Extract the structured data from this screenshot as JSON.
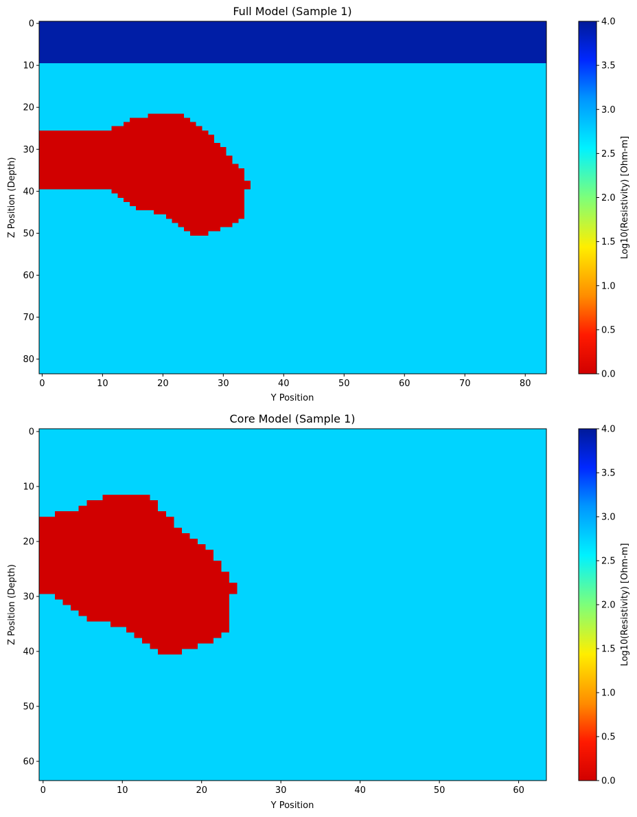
{
  "chart_data": [
    {
      "type": "heatmap",
      "title": "Full Model (Sample 1)",
      "xlabel": "Y Position",
      "ylabel": "Z Position (Depth)",
      "xlim": [
        -0.5,
        83.5
      ],
      "ylim": [
        83.5,
        -0.5
      ],
      "x_ticks": [
        0,
        10,
        20,
        30,
        40,
        50,
        60,
        70,
        80
      ],
      "y_ticks": [
        0,
        10,
        20,
        30,
        40,
        50,
        60,
        70,
        80
      ],
      "grid": [
        84,
        84
      ],
      "layers": [
        {
          "z_from": 0,
          "z_to": 9,
          "value": 4.0,
          "color": "#001ea6"
        },
        {
          "z_from": 10,
          "z_to": 83,
          "value": 2.85,
          "color": "#00d4ff"
        }
      ],
      "anomaly": {
        "value": 0.0,
        "color": "#d10000",
        "rows": [
          {
            "z": 22,
            "y0": 18,
            "y1": 23
          },
          {
            "z": 23,
            "y0": 15,
            "y1": 24
          },
          {
            "z": 24,
            "y0": 14,
            "y1": 25
          },
          {
            "z": 25,
            "y0": 12,
            "y1": 26
          },
          {
            "z": 26,
            "y0": 0,
            "y1": 27
          },
          {
            "z": 27,
            "y0": 0,
            "y1": 28
          },
          {
            "z": 28,
            "y0": 0,
            "y1": 28
          },
          {
            "z": 29,
            "y0": 0,
            "y1": 29
          },
          {
            "z": 30,
            "y0": 0,
            "y1": 30
          },
          {
            "z": 31,
            "y0": 0,
            "y1": 30
          },
          {
            "z": 32,
            "y0": 0,
            "y1": 31
          },
          {
            "z": 33,
            "y0": 0,
            "y1": 31
          },
          {
            "z": 34,
            "y0": 0,
            "y1": 32
          },
          {
            "z": 35,
            "y0": 0,
            "y1": 33
          },
          {
            "z": 36,
            "y0": 0,
            "y1": 33
          },
          {
            "z": 37,
            "y0": 0,
            "y1": 33
          },
          {
            "z": 38,
            "y0": 0,
            "y1": 34
          },
          {
            "z": 39,
            "y0": 0,
            "y1": 34
          },
          {
            "z": 40,
            "y0": 12,
            "y1": 33
          },
          {
            "z": 41,
            "y0": 13,
            "y1": 33
          },
          {
            "z": 42,
            "y0": 14,
            "y1": 33
          },
          {
            "z": 43,
            "y0": 15,
            "y1": 33
          },
          {
            "z": 44,
            "y0": 16,
            "y1": 33
          },
          {
            "z": 45,
            "y0": 19,
            "y1": 33
          },
          {
            "z": 46,
            "y0": 21,
            "y1": 33
          },
          {
            "z": 47,
            "y0": 22,
            "y1": 32
          },
          {
            "z": 48,
            "y0": 23,
            "y1": 31
          },
          {
            "z": 49,
            "y0": 24,
            "y1": 29
          },
          {
            "z": 50,
            "y0": 25,
            "y1": 27
          }
        ]
      },
      "colorbar": {
        "label": "Log10(Resistivity) [Ohm-m]",
        "colormap": "jet_r",
        "vmin": 0.0,
        "vmax": 4.0,
        "ticks": [
          "0.0",
          "0.5",
          "1.0",
          "1.5",
          "2.0",
          "2.5",
          "3.0",
          "3.5",
          "4.0"
        ]
      }
    },
    {
      "type": "heatmap",
      "title": "Core Model (Sample 1)",
      "xlabel": "Y Position",
      "ylabel": "Z Position (Depth)",
      "xlim": [
        -0.5,
        63.5
      ],
      "ylim": [
        63.5,
        -0.5
      ],
      "x_ticks": [
        0,
        10,
        20,
        30,
        40,
        50,
        60
      ],
      "y_ticks": [
        0,
        10,
        20,
        30,
        40,
        50,
        60
      ],
      "grid": [
        64,
        64
      ],
      "layers": [
        {
          "z_from": 0,
          "z_to": 63,
          "value": 2.85,
          "color": "#00d4ff"
        }
      ],
      "anomaly": {
        "value": 0.0,
        "color": "#d10000",
        "rows": [
          {
            "z": 12,
            "y0": 8,
            "y1": 13
          },
          {
            "z": 13,
            "y0": 6,
            "y1": 14
          },
          {
            "z": 14,
            "y0": 5,
            "y1": 14
          },
          {
            "z": 15,
            "y0": 2,
            "y1": 15
          },
          {
            "z": 16,
            "y0": 0,
            "y1": 16
          },
          {
            "z": 17,
            "y0": 0,
            "y1": 16
          },
          {
            "z": 18,
            "y0": 0,
            "y1": 17
          },
          {
            "z": 19,
            "y0": 0,
            "y1": 18
          },
          {
            "z": 20,
            "y0": 0,
            "y1": 19
          },
          {
            "z": 21,
            "y0": 0,
            "y1": 20
          },
          {
            "z": 22,
            "y0": 0,
            "y1": 21
          },
          {
            "z": 23,
            "y0": 0,
            "y1": 21
          },
          {
            "z": 24,
            "y0": 0,
            "y1": 22
          },
          {
            "z": 25,
            "y0": 0,
            "y1": 22
          },
          {
            "z": 26,
            "y0": 0,
            "y1": 23
          },
          {
            "z": 27,
            "y0": 0,
            "y1": 23
          },
          {
            "z": 28,
            "y0": 0,
            "y1": 24
          },
          {
            "z": 29,
            "y0": 0,
            "y1": 24
          },
          {
            "z": 30,
            "y0": 2,
            "y1": 23
          },
          {
            "z": 31,
            "y0": 3,
            "y1": 23
          },
          {
            "z": 32,
            "y0": 4,
            "y1": 23
          },
          {
            "z": 33,
            "y0": 5,
            "y1": 23
          },
          {
            "z": 34,
            "y0": 6,
            "y1": 23
          },
          {
            "z": 35,
            "y0": 9,
            "y1": 23
          },
          {
            "z": 36,
            "y0": 11,
            "y1": 23
          },
          {
            "z": 37,
            "y0": 12,
            "y1": 22
          },
          {
            "z": 38,
            "y0": 13,
            "y1": 21
          },
          {
            "z": 39,
            "y0": 14,
            "y1": 19
          },
          {
            "z": 40,
            "y0": 15,
            "y1": 17
          }
        ]
      },
      "colorbar": {
        "label": "Log10(Resistivity) [Ohm-m]",
        "colormap": "jet_r",
        "vmin": 0.0,
        "vmax": 4.0,
        "ticks": [
          "0.0",
          "0.5",
          "1.0",
          "1.5",
          "2.0",
          "2.5",
          "3.0",
          "3.5",
          "4.0"
        ]
      }
    }
  ]
}
